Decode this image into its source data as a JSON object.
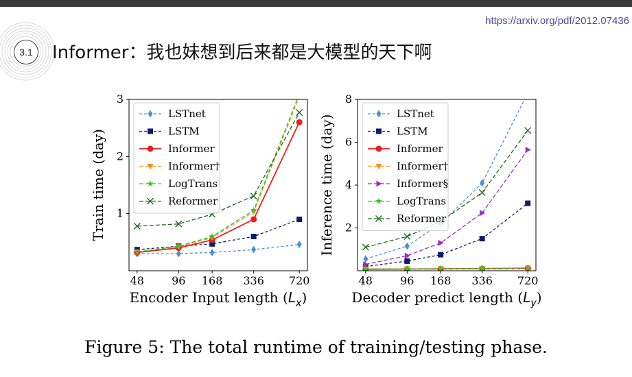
{
  "header": {
    "url": "https://arxiv.org/pdf/2012.07436",
    "section_number": "3.1",
    "title": "Informer：我也妹想到后来都是大模型的天下啊"
  },
  "caption": "Figure 5: The total runtime of training/testing phase.",
  "chart_data": [
    {
      "type": "line",
      "xlabel": "Encoder Input length (L_x)",
      "ylabel": "Train time (day)",
      "x_scale": "log2",
      "x": [
        48,
        96,
        168,
        336,
        720
      ],
      "xticks": [
        "48",
        "96",
        "168",
        "336",
        "720"
      ],
      "ylim": [
        0,
        3
      ],
      "yticks": [
        1,
        2,
        3
      ],
      "grid": false,
      "legend_position": "top-left",
      "series": [
        {
          "name": "LSTnet",
          "color": "#4a90d9",
          "marker": "diamond",
          "dash": "4,3",
          "values": [
            0.3,
            0.3,
            0.32,
            0.37,
            0.46
          ]
        },
        {
          "name": "LSTM",
          "color": "#0d1b6e",
          "marker": "square",
          "dash": "4,3",
          "values": [
            0.37,
            0.43,
            0.47,
            0.6,
            0.9
          ]
        },
        {
          "name": "Informer",
          "color": "#ee1c1c",
          "marker": "circle",
          "dash": "",
          "values": [
            0.32,
            0.4,
            0.54,
            0.9,
            2.6
          ]
        },
        {
          "name": "Informer†",
          "color": "#ff8c1a",
          "marker": "triangle-down",
          "dash": "6,3",
          "values": [
            0.33,
            0.42,
            0.58,
            1.03,
            3.05
          ]
        },
        {
          "name": "LogTrans",
          "color": "#2ec72e",
          "marker": "star",
          "dash": "6,3",
          "values": [
            0.33,
            0.43,
            0.6,
            1.06,
            3.1
          ]
        },
        {
          "name": "Reformer",
          "color": "#1a6b1a",
          "marker": "x",
          "dash": "6,3",
          "values": [
            0.78,
            0.82,
            0.99,
            1.31,
            2.77
          ]
        }
      ]
    },
    {
      "type": "line",
      "xlabel": "Decoder predict length (L_y)",
      "ylabel": "Inference time (day)",
      "x_scale": "log2",
      "x": [
        48,
        96,
        168,
        336,
        720
      ],
      "xticks": [
        "48",
        "96",
        "168",
        "336",
        "720"
      ],
      "ylim": [
        0,
        8
      ],
      "yticks": [
        2,
        4,
        6,
        8
      ],
      "grid": false,
      "legend_position": "top-left",
      "series": [
        {
          "name": "LSTnet",
          "color": "#4a90d9",
          "marker": "diamond",
          "dash": "4,3",
          "values": [
            0.55,
            1.15,
            2.2,
            4.1,
            8.3
          ]
        },
        {
          "name": "LSTM",
          "color": "#0d1b6e",
          "marker": "square",
          "dash": "4,3",
          "values": [
            0.2,
            0.45,
            0.75,
            1.5,
            3.15
          ]
        },
        {
          "name": "Informer",
          "color": "#ee1c1c",
          "marker": "circle",
          "dash": "",
          "values": [
            0.07,
            0.08,
            0.09,
            0.1,
            0.12
          ]
        },
        {
          "name": "Informer†",
          "color": "#ff8c1a",
          "marker": "triangle-down",
          "dash": "6,3",
          "values": [
            0.09,
            0.09,
            0.1,
            0.11,
            0.13
          ]
        },
        {
          "name": "Informer§",
          "color": "#9a2fc4",
          "marker": "triangle-right",
          "dash": "6,3",
          "values": [
            0.3,
            0.7,
            1.3,
            2.7,
            5.65
          ]
        },
        {
          "name": "LogTrans",
          "color": "#2ec72e",
          "marker": "star",
          "dash": "6,3",
          "values": [
            0.08,
            0.09,
            0.1,
            0.11,
            0.13
          ]
        },
        {
          "name": "Reformer",
          "color": "#1a6b1a",
          "marker": "x",
          "dash": "6,3",
          "values": [
            1.1,
            1.6,
            2.3,
            3.65,
            6.55
          ]
        }
      ]
    }
  ]
}
